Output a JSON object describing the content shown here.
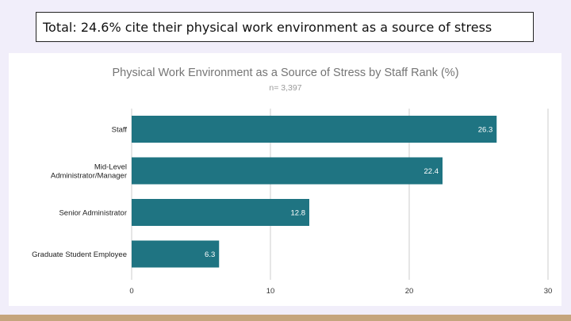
{
  "headline": "Total: 24.6% cite their physical work environment as a source of stress",
  "colors": {
    "bar": "#1f7482",
    "background": "#f1eefa",
    "card": "#ffffff",
    "footer": "#c5a57d",
    "title_text": "#757575",
    "grid": "#cccccc"
  },
  "chart_data": {
    "type": "bar",
    "orientation": "horizontal",
    "title": "Physical Work Environment as a Source of Stress by Staff Rank (%)",
    "subtitle": "n= 3,397",
    "categories": [
      [
        "Staff"
      ],
      [
        "Mid-Level",
        "Administrator/Manager"
      ],
      [
        "Senior Administrator"
      ],
      [
        "Graduate Student Employee"
      ]
    ],
    "values": [
      26.3,
      22.4,
      12.8,
      6.3
    ],
    "value_labels": [
      "26.3",
      "22.4",
      "12.8",
      "6.3"
    ],
    "xlim": [
      0,
      30
    ],
    "xticks": [
      0,
      10,
      20,
      30
    ],
    "xtick_labels": [
      "0",
      "10",
      "20",
      "30"
    ],
    "xlabel": "",
    "ylabel": "",
    "grid": true,
    "legend": "none"
  }
}
